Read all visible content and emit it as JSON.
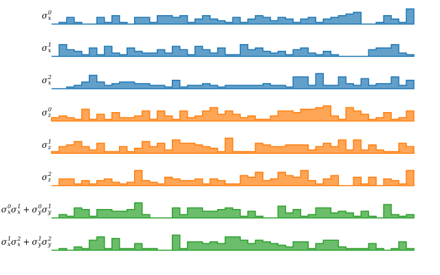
{
  "chart_data": {
    "type": "step-area",
    "series": [
      {
        "label": [
          {
            "sym": "σ",
            "sup": "0",
            "sub": "x"
          }
        ],
        "color": "#1f77b4",
        "values": [
          0,
          1,
          4,
          1,
          0,
          0,
          4,
          1,
          5,
          1,
          0,
          4,
          4,
          1,
          5,
          5,
          4,
          5,
          1,
          3,
          5,
          3,
          2,
          1,
          4,
          1,
          3,
          5,
          4,
          2,
          4,
          3,
          1,
          3,
          4,
          1,
          3,
          4,
          5,
          6,
          7,
          0,
          0,
          1,
          5,
          3,
          1,
          9
        ]
      },
      {
        "label": [
          {
            "sym": "σ",
            "sup": "1",
            "sub": "x"
          }
        ],
        "color": "#1f77b4",
        "values": [
          0,
          7,
          4,
          3,
          1,
          5,
          1,
          6,
          2,
          1,
          5,
          3,
          2,
          2,
          4,
          2,
          6,
          4,
          1,
          6,
          4,
          2,
          5,
          1,
          1,
          7,
          4,
          5,
          3,
          2,
          3,
          1,
          4,
          5,
          2,
          1,
          3,
          1,
          0,
          0,
          0,
          0,
          4,
          5,
          5,
          7,
          2,
          1
        ]
      },
      {
        "label": [
          {
            "sym": "σ",
            "sup": "2",
            "sub": "x"
          }
        ],
        "color": "#1f77b4",
        "values": [
          0,
          0,
          1,
          2,
          4,
          8,
          4,
          2,
          3,
          4,
          4,
          3,
          3,
          2,
          2,
          1,
          5,
          1,
          2,
          2,
          3,
          2,
          1,
          2,
          2,
          2,
          2,
          2,
          3,
          2,
          2,
          1,
          7,
          7,
          2,
          9,
          2,
          2,
          7,
          3,
          2,
          6,
          2,
          3,
          3,
          7,
          2,
          5
        ]
      },
      {
        "label": [
          {
            "sym": "σ",
            "sup": "0",
            "sub": "z"
          }
        ],
        "color": "#ff7f0e",
        "values": [
          2,
          3,
          2,
          1,
          7,
          1,
          4,
          1,
          5,
          2,
          2,
          3,
          6,
          1,
          6,
          3,
          1,
          6,
          2,
          3,
          6,
          8,
          4,
          6,
          4,
          2,
          3,
          1,
          1,
          3,
          6,
          6,
          5,
          7,
          7,
          8,
          9,
          3,
          1,
          8,
          6,
          4,
          1,
          2,
          5,
          1,
          2,
          6
        ]
      },
      {
        "label": [
          {
            "sym": "σ",
            "sup": "1",
            "sub": "z"
          }
        ],
        "color": "#ff7f0e",
        "values": [
          1,
          4,
          5,
          7,
          4,
          2,
          6,
          1,
          1,
          4,
          1,
          3,
          7,
          4,
          6,
          2,
          8,
          6,
          6,
          5,
          4,
          3,
          1,
          9,
          1,
          1,
          1,
          6,
          5,
          4,
          4,
          5,
          5,
          5,
          2,
          4,
          6,
          4,
          8,
          2,
          8,
          2,
          5,
          2,
          1,
          1,
          6,
          4
        ]
      },
      {
        "label": [
          {
            "sym": "σ",
            "sup": "2",
            "sub": "z"
          }
        ],
        "color": "#ff7f0e",
        "values": [
          0,
          4,
          4,
          1,
          3,
          1,
          3,
          4,
          2,
          1,
          2,
          9,
          3,
          2,
          1,
          5,
          4,
          3,
          3,
          4,
          1,
          4,
          3,
          1,
          1,
          6,
          5,
          8,
          3,
          4,
          8,
          6,
          5,
          9,
          3,
          1,
          4,
          6,
          0,
          0,
          5,
          1,
          5,
          0,
          4,
          3,
          1,
          9
        ]
      },
      {
        "label": [
          {
            "sym": "σ",
            "sup": "0",
            "sub": "x"
          },
          {
            "sym": "σ",
            "sup": "1",
            "sub": "x"
          },
          {
            "op": "+"
          },
          {
            "sym": "σ",
            "sup": "0",
            "sub": "y"
          },
          {
            "sym": "σ",
            "sup": "1",
            "sub": "y"
          }
        ],
        "color": "#2ca02c",
        "values": [
          0,
          2,
          1,
          6,
          5,
          1,
          5,
          5,
          4,
          4,
          5,
          9,
          2,
          0,
          0,
          0,
          6,
          2,
          6,
          6,
          4,
          4,
          5,
          6,
          5,
          1,
          4,
          1,
          0,
          0,
          7,
          3,
          5,
          1,
          2,
          6,
          6,
          3,
          4,
          3,
          1,
          4,
          1,
          0,
          8,
          2,
          1,
          2
        ]
      },
      {
        "label": [
          {
            "sym": "σ",
            "sup": "1",
            "sub": "x"
          },
          {
            "sym": "σ",
            "sup": "2",
            "sub": "x"
          },
          {
            "op": "+"
          },
          {
            "sym": "σ",
            "sup": "1",
            "sub": "y"
          },
          {
            "sym": "σ",
            "sup": "2",
            "sub": "y"
          }
        ],
        "color": "#2ca02c",
        "values": [
          0,
          1,
          0,
          2,
          1,
          6,
          8,
          1,
          7,
          1,
          1,
          4,
          1,
          1,
          0,
          0,
          9,
          1,
          5,
          5,
          4,
          5,
          4,
          8,
          8,
          6,
          4,
          6,
          5,
          4,
          3,
          2,
          5,
          5,
          1,
          4,
          6,
          6,
          2,
          1,
          1,
          1,
          4,
          1,
          0,
          1,
          5,
          1
        ]
      }
    ]
  }
}
